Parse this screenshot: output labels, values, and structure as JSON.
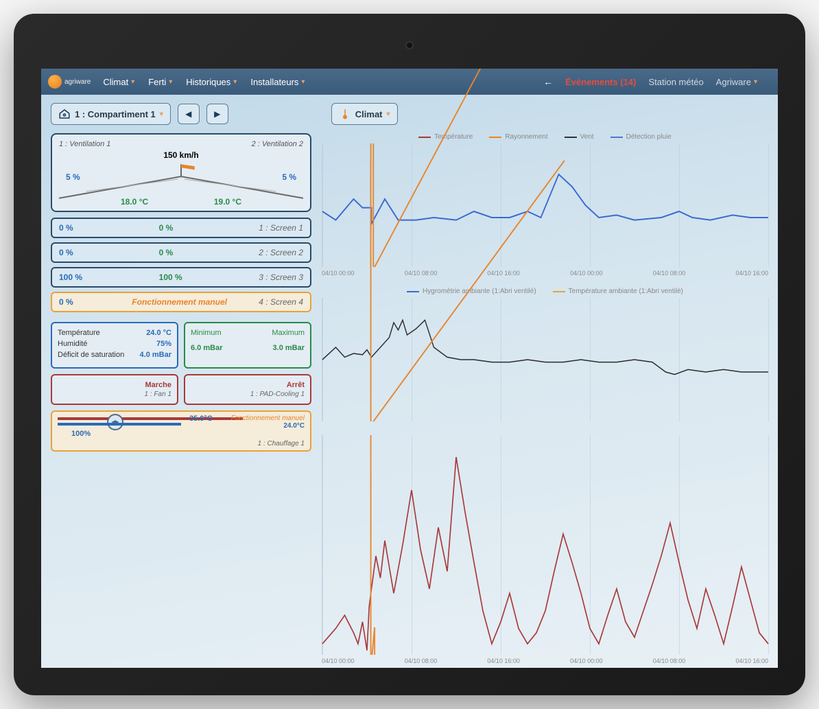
{
  "brand": {
    "name": "agriware"
  },
  "nav": {
    "items": [
      "Climat",
      "Ferti",
      "Historiques",
      "Installateurs"
    ]
  },
  "topbar_right": {
    "events_label": "Évènements (14)",
    "station_label": "Station météo",
    "brand_menu": "Agriware"
  },
  "toolbar": {
    "compartment": "1 : Compartiment 1",
    "section": "Climat"
  },
  "ventilation": {
    "left_label": "1 : Ventilation 1",
    "right_label": "2 : Ventilation 2",
    "wind": "150 km/h",
    "left_pct": "5 %",
    "right_pct": "5 %",
    "left_temp": "18.0 °C",
    "right_temp": "19.0 °C"
  },
  "screens": [
    {
      "v1": "0 %",
      "v2": "0  %",
      "label": "1 : Screen 1",
      "v2_color": "green",
      "orange": false
    },
    {
      "v1": "0 %",
      "v2": "0  %",
      "label": "2 : Screen 2",
      "v2_color": "green",
      "orange": false
    },
    {
      "v1": "100 %",
      "v2": "100  %",
      "label": "3 : Screen 3",
      "v2_color": "green",
      "orange": false
    },
    {
      "v1": "0 %",
      "manual": "Fonctionnement manuel",
      "label": "4 : Screen 4",
      "orange": true
    }
  ],
  "ambient": {
    "rows": [
      {
        "label": "Température",
        "val": "24.0 °C"
      },
      {
        "label": "Humidité",
        "val": "75%"
      },
      {
        "label": "Déficit de saturation",
        "val": "4.0 mBar"
      }
    ]
  },
  "minmax": {
    "min_label": "Minimum",
    "max_label": "Maximum",
    "min_val": "6.0 mBar",
    "max_val": "3.0 mBar"
  },
  "fan": {
    "status": "Marche",
    "label": "1 : Fan 1"
  },
  "pad": {
    "status": "Arrêt",
    "label": "1 : PAD-Cooling 1"
  },
  "heating": {
    "temp_primary": "35.0°C",
    "manual": "Fonctionnement manuel",
    "temp_secondary": "24.0°C",
    "pct": "100%",
    "label": "1 : Chauffage 1"
  },
  "legends": {
    "top": [
      {
        "label": "Température",
        "color": "#a83a3a"
      },
      {
        "label": "Rayonnement",
        "color": "#e8852a"
      },
      {
        "label": "Vent",
        "color": "#333333"
      },
      {
        "label": "Détection pluie",
        "color": "#4a7ad0"
      }
    ],
    "mid": [
      {
        "label": "Hygrométrie ambiante (1:Abri ventilé)",
        "color": "#3a6ad0"
      },
      {
        "label": "Température ambiante (1:Abri ventilé)",
        "color": "#e8a23a"
      }
    ]
  },
  "x_ticks": [
    "04/10 00:00",
    "04/10 08:00",
    "04/10 16:00",
    "04/10 00:00",
    "04/10 08:00",
    "04/10 16:00"
  ],
  "chart1": {
    "colors": {
      "blue": "#3a6ad0",
      "orange": "#e8852a",
      "black": "#2a2a2a"
    },
    "blue_line": [
      [
        0,
        55
      ],
      [
        3,
        62
      ],
      [
        7,
        45
      ],
      [
        9,
        52
      ],
      [
        11,
        52
      ],
      [
        11,
        65
      ],
      [
        14,
        45
      ],
      [
        17,
        62
      ],
      [
        21,
        62
      ],
      [
        25,
        60
      ],
      [
        30,
        62
      ],
      [
        34,
        55
      ],
      [
        38,
        60
      ],
      [
        42,
        60
      ],
      [
        46,
        55
      ],
      [
        49,
        60
      ],
      [
        53,
        25
      ],
      [
        56,
        35
      ],
      [
        59,
        50
      ],
      [
        62,
        60
      ],
      [
        66,
        58
      ],
      [
        70,
        62
      ],
      [
        76,
        60
      ],
      [
        80,
        55
      ],
      [
        83,
        60
      ],
      [
        87,
        62
      ],
      [
        92,
        58
      ],
      [
        96,
        60
      ],
      [
        100,
        60
      ]
    ]
  },
  "chart2": {
    "colors": {
      "black": "#2a2a2a",
      "orange": "#e8852a"
    },
    "black_line": [
      [
        0,
        50
      ],
      [
        3,
        40
      ],
      [
        5,
        48
      ],
      [
        7,
        45
      ],
      [
        9,
        46
      ],
      [
        10,
        42
      ],
      [
        11,
        48
      ],
      [
        13,
        40
      ],
      [
        15,
        32
      ],
      [
        16,
        20
      ],
      [
        17,
        26
      ],
      [
        18,
        18
      ],
      [
        19,
        30
      ],
      [
        21,
        25
      ],
      [
        23,
        18
      ],
      [
        25,
        40
      ],
      [
        28,
        48
      ],
      [
        31,
        50
      ],
      [
        34,
        50
      ],
      [
        38,
        52
      ],
      [
        42,
        52
      ],
      [
        46,
        50
      ],
      [
        50,
        52
      ],
      [
        54,
        52
      ],
      [
        58,
        50
      ],
      [
        62,
        52
      ],
      [
        66,
        52
      ],
      [
        70,
        50
      ],
      [
        74,
        52
      ],
      [
        77,
        60
      ],
      [
        79,
        62
      ],
      [
        82,
        58
      ],
      [
        86,
        60
      ],
      [
        90,
        58
      ],
      [
        94,
        60
      ],
      [
        100,
        60
      ]
    ]
  },
  "chart3": {
    "colors": {
      "red": "#a83a3a",
      "orange": "#e8852a"
    },
    "red_line": [
      [
        0,
        95
      ],
      [
        3,
        88
      ],
      [
        5,
        82
      ],
      [
        7,
        90
      ],
      [
        8,
        95
      ],
      [
        9,
        85
      ],
      [
        10,
        98
      ],
      [
        10.5,
        78
      ],
      [
        11,
        70
      ],
      [
        12,
        55
      ],
      [
        13,
        65
      ],
      [
        14,
        48
      ],
      [
        16,
        72
      ],
      [
        18,
        50
      ],
      [
        20,
        25
      ],
      [
        22,
        52
      ],
      [
        24,
        70
      ],
      [
        26,
        42
      ],
      [
        28,
        62
      ],
      [
        30,
        10
      ],
      [
        32,
        35
      ],
      [
        34,
        58
      ],
      [
        36,
        80
      ],
      [
        38,
        95
      ],
      [
        40,
        85
      ],
      [
        42,
        72
      ],
      [
        44,
        88
      ],
      [
        46,
        95
      ],
      [
        48,
        90
      ],
      [
        50,
        80
      ],
      [
        52,
        62
      ],
      [
        54,
        45
      ],
      [
        56,
        58
      ],
      [
        58,
        72
      ],
      [
        60,
        88
      ],
      [
        62,
        95
      ],
      [
        64,
        82
      ],
      [
        66,
        70
      ],
      [
        68,
        85
      ],
      [
        70,
        92
      ],
      [
        72,
        80
      ],
      [
        74,
        68
      ],
      [
        76,
        55
      ],
      [
        78,
        40
      ],
      [
        80,
        58
      ],
      [
        82,
        75
      ],
      [
        84,
        88
      ],
      [
        86,
        70
      ],
      [
        88,
        82
      ],
      [
        90,
        95
      ],
      [
        92,
        78
      ],
      [
        94,
        60
      ],
      [
        96,
        75
      ],
      [
        98,
        90
      ],
      [
        100,
        95
      ]
    ]
  }
}
